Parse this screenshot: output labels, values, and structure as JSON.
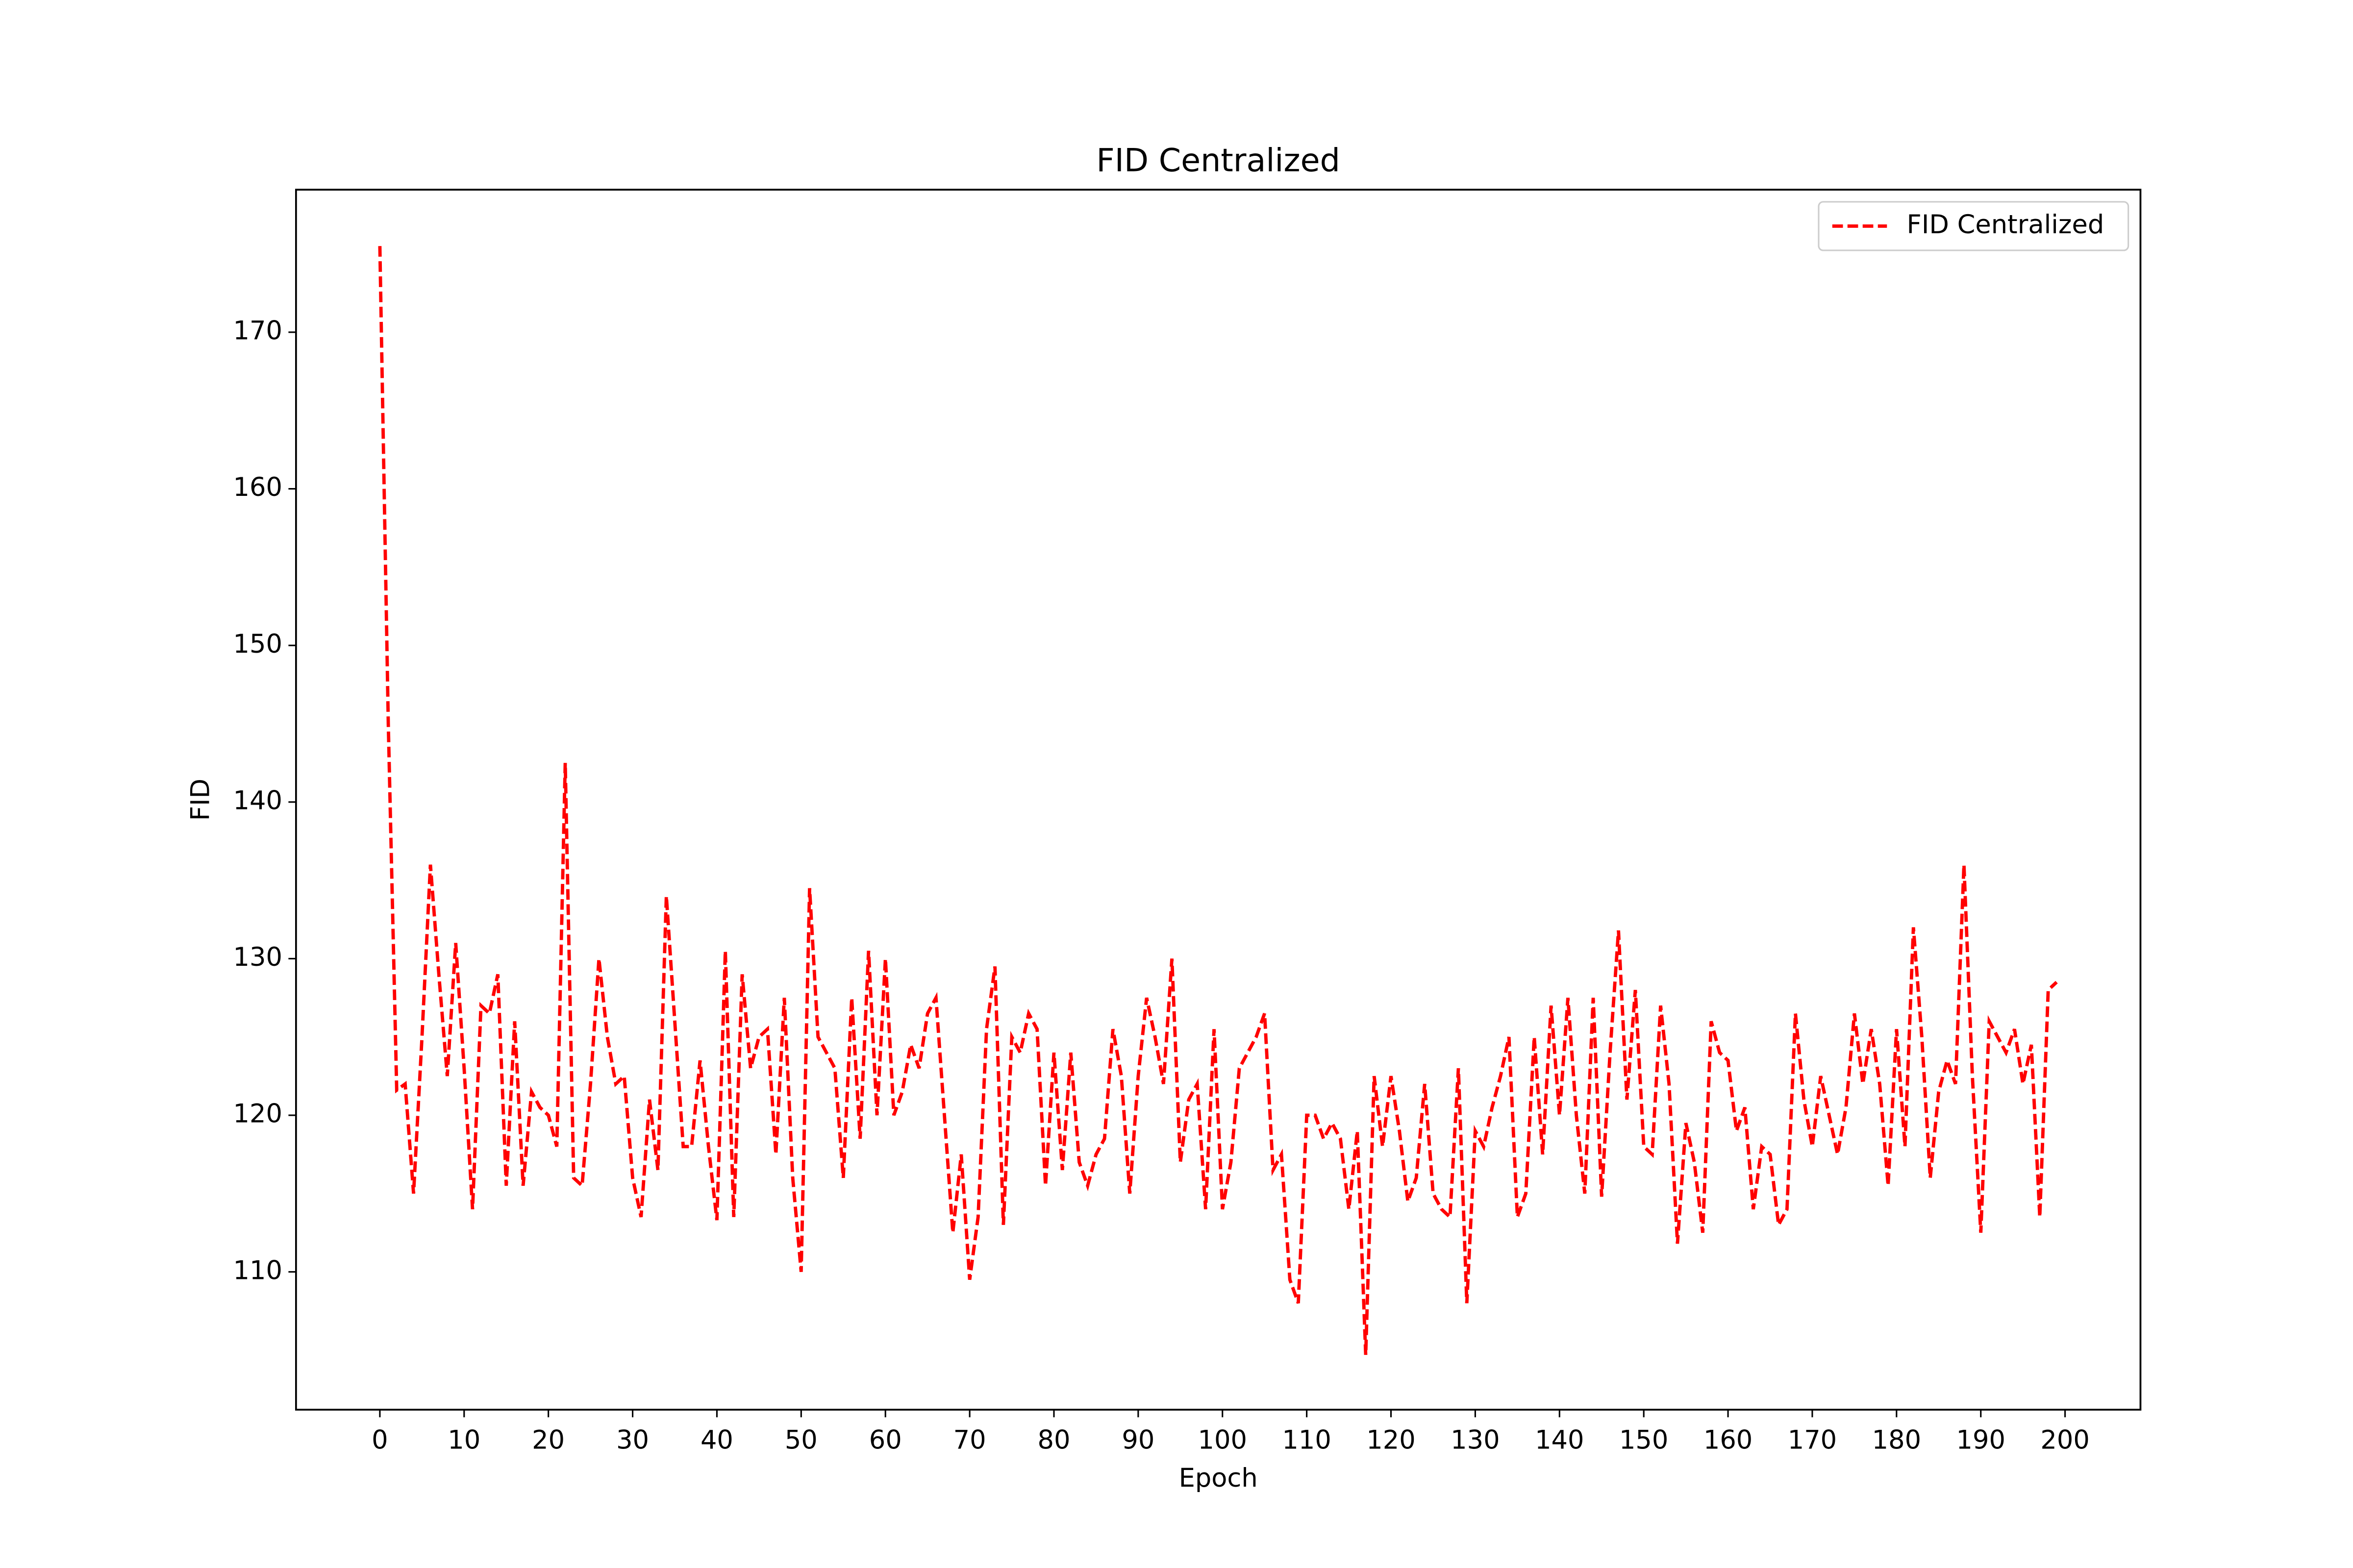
{
  "chart_data": {
    "type": "line",
    "title": "FID Centralized",
    "xlabel": "Epoch",
    "ylabel": "FID",
    "x": [
      0,
      1,
      2,
      3,
      4,
      5,
      6,
      7,
      8,
      9,
      10,
      11,
      12,
      13,
      14,
      15,
      16,
      17,
      18,
      19,
      20,
      21,
      22,
      23,
      24,
      25,
      26,
      27,
      28,
      29,
      30,
      31,
      32,
      33,
      34,
      35,
      36,
      37,
      38,
      39,
      40,
      41,
      42,
      43,
      44,
      45,
      46,
      47,
      48,
      49,
      50,
      51,
      52,
      53,
      54,
      55,
      56,
      57,
      58,
      59,
      60,
      61,
      62,
      63,
      64,
      65,
      66,
      67,
      68,
      69,
      70,
      71,
      72,
      73,
      74,
      75,
      76,
      77,
      78,
      79,
      80,
      81,
      82,
      83,
      84,
      85,
      86,
      87,
      88,
      89,
      90,
      91,
      92,
      93,
      94,
      95,
      96,
      97,
      98,
      99,
      100,
      101,
      102,
      103,
      104,
      105,
      106,
      107,
      108,
      109,
      110,
      111,
      112,
      113,
      114,
      115,
      116,
      117,
      118,
      119,
      120,
      121,
      122,
      123,
      124,
      125,
      126,
      127,
      128,
      129,
      130,
      131,
      132,
      133,
      134,
      135,
      136,
      137,
      138,
      139,
      140,
      141,
      142,
      143,
      144,
      145,
      146,
      147,
      148,
      149,
      150,
      151,
      152,
      153,
      154,
      155,
      156,
      157,
      158,
      159,
      160,
      161,
      162,
      163,
      164,
      165,
      166,
      167,
      168,
      169,
      170,
      171,
      172,
      173,
      174,
      175,
      176,
      177,
      178,
      179,
      180,
      181,
      182,
      183,
      184,
      185,
      186,
      187,
      188,
      189,
      190,
      191,
      192,
      193,
      194,
      195,
      196,
      197,
      198,
      199
    ],
    "series": [
      {
        "name": "FID Centralized",
        "color": "#ff0000",
        "dash": true,
        "values": [
          175.5,
          145,
          121.6,
          122,
          115,
          125,
          136,
          129,
          122.5,
          131,
          123,
          114,
          127,
          126.5,
          129,
          115.5,
          126,
          115.5,
          121.5,
          120.5,
          120,
          118,
          142.5,
          116,
          115.5,
          122,
          130,
          125,
          122,
          122.5,
          116,
          113.5,
          121,
          116.5,
          134,
          126,
          118,
          118,
          123.5,
          118,
          113.3,
          130.5,
          113.5,
          129,
          123,
          125,
          125.5,
          117.5,
          127.5,
          116,
          110,
          134.5,
          125,
          124,
          123,
          116,
          127.5,
          118.5,
          130.5,
          120,
          130,
          120,
          121.5,
          124.5,
          123,
          126.5,
          127.5,
          120,
          112.5,
          117.5,
          109.5,
          113.5,
          125.5,
          129.5,
          113,
          125,
          124,
          126.5,
          125.5,
          115.5,
          124,
          116.5,
          124,
          117,
          115.5,
          117.5,
          118.5,
          125.5,
          122.5,
          115,
          122.5,
          127.5,
          125,
          122,
          130,
          117,
          121,
          122,
          114,
          125.5,
          114,
          117,
          123,
          124,
          125,
          126.5,
          116.5,
          117.5,
          109.5,
          108,
          120,
          120,
          118.5,
          119.5,
          118.5,
          114,
          119,
          104.7,
          122.5,
          118,
          122.5,
          119,
          114.5,
          116,
          122,
          115,
          114,
          113.5,
          123,
          108,
          119,
          118,
          120.5,
          122.5,
          125,
          113.5,
          115,
          125,
          117.5,
          127,
          120,
          127.5,
          120,
          115,
          127.5,
          114.8,
          124,
          131.8,
          121,
          128,
          118,
          117.5,
          127,
          122,
          111.8,
          119.5,
          117,
          112.5,
          126,
          124,
          123.5,
          119,
          120.5,
          114,
          118,
          117.5,
          113,
          114,
          126.5,
          121,
          118,
          122.5,
          120,
          117.5,
          120.5,
          126.5,
          122,
          125.5,
          122,
          115.5,
          125.5,
          118,
          132,
          125,
          116,
          121.5,
          123.5,
          122,
          136,
          122.5,
          112.5,
          126,
          125,
          124,
          125.5,
          122,
          124.5,
          113.5,
          128,
          128.5
        ]
      }
    ],
    "xlim": [
      -9.95,
      208.95
    ],
    "ylim": [
      101.2,
      179.1
    ],
    "xticks": [
      0,
      10,
      20,
      30,
      40,
      50,
      60,
      70,
      80,
      90,
      100,
      110,
      120,
      130,
      140,
      150,
      160,
      170,
      180,
      190,
      200
    ],
    "yticks": [
      110,
      120,
      130,
      140,
      150,
      160,
      170
    ],
    "legend": "upper right"
  }
}
